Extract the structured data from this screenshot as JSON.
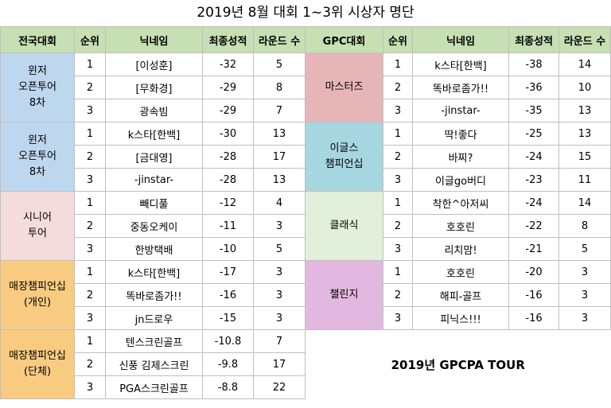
{
  "title": "2019년 8월 대회 1~3위 시상자 명단",
  "headers": {
    "left": [
      "전국대회",
      "순위",
      "닉네임",
      "최종성적",
      "라운드 수"
    ],
    "right": [
      "GPC대회",
      "순위",
      "닉네임",
      "최종성적",
      "라운드 수"
    ]
  },
  "left_groups": [
    {
      "name_lines": [
        "윈저",
        "오픈투어",
        "8차"
      ],
      "color": "#bdd7ee",
      "rows": [
        [
          "1",
          "[이성훈]",
          "-32",
          "5"
        ],
        [
          "2",
          "[무화경]",
          "-29",
          "8"
        ],
        [
          "3",
          "광속빔",
          "-29",
          "7"
        ]
      ]
    },
    {
      "name_lines": [
        "윈저",
        "오픈투어",
        "8차"
      ],
      "color": "#bdd7ee",
      "rows": [
        [
          "1",
          "k스타[한백]",
          "-30",
          "13"
        ],
        [
          "2",
          "[금대영]",
          "-28",
          "17"
        ],
        [
          "3",
          "-jinstar-",
          "-28",
          "13"
        ]
      ]
    },
    {
      "name_lines": [
        "시니어",
        "투어"
      ],
      "color": "#f5dcdc",
      "rows": [
        [
          "1",
          "빼디풀",
          "-12",
          "4"
        ],
        [
          "2",
          "중동오케이",
          "-11",
          "3"
        ],
        [
          "3",
          "한방택배",
          "-10",
          "5"
        ]
      ]
    },
    {
      "name_lines": [
        "매장챔피언십",
        "(개인)"
      ],
      "color": "#f8cb80",
      "rows": [
        [
          "1",
          "k스타[한백]",
          "-17",
          "3"
        ],
        [
          "2",
          "똑바로좀가!!",
          "-16",
          "3"
        ],
        [
          "3",
          "jn드로우",
          "-15",
          "3"
        ]
      ]
    },
    {
      "name_lines": [
        "매장챔피언십",
        "(단체)"
      ],
      "color": "#f8cb80",
      "rows": [
        [
          "1",
          "텐스크린골프",
          "-10.8",
          "7"
        ],
        [
          "2",
          "신풍 김제스크린",
          "-9.8",
          "17"
        ],
        [
          "3",
          "PGA스크린골프",
          "-8.8",
          "22"
        ]
      ]
    }
  ],
  "right_groups": [
    {
      "name_lines": [
        "마스터즈"
      ],
      "color": "#e6b5b8",
      "rows": [
        [
          "1",
          "k스타[한백]",
          "-38",
          "14"
        ],
        [
          "2",
          "똑바로좀가!!",
          "-36",
          "10"
        ],
        [
          "3",
          "-jinstar-",
          "-35",
          "13"
        ]
      ]
    },
    {
      "name_lines": [
        "이글스",
        "챔피언십"
      ],
      "color": "#a6d6e0",
      "rows": [
        [
          "1",
          "딱!좋다",
          "-25",
          "13"
        ],
        [
          "2",
          "바찌?",
          "-24",
          "15"
        ],
        [
          "3",
          "이글go버디",
          "-23",
          "11"
        ]
      ]
    },
    {
      "name_lines": [
        "클래식"
      ],
      "color": "#e2efda",
      "rows": [
        [
          "1",
          "착한^아저씨",
          "-24",
          "14"
        ],
        [
          "2",
          "호호린",
          "-22",
          "8"
        ],
        [
          "3",
          "리치맘!",
          "-21",
          "5"
        ]
      ]
    },
    {
      "name_lines": [
        "챌린지"
      ],
      "color": "#e3b8e0",
      "rows": [
        [
          "1",
          "호호린",
          "-20",
          "3"
        ],
        [
          "2",
          "해피-골프",
          "-16",
          "3"
        ],
        [
          "3",
          "피닉스!!!",
          "-16",
          "3"
        ]
      ]
    }
  ],
  "tour_label": "2019년 GPCPA TOUR"
}
